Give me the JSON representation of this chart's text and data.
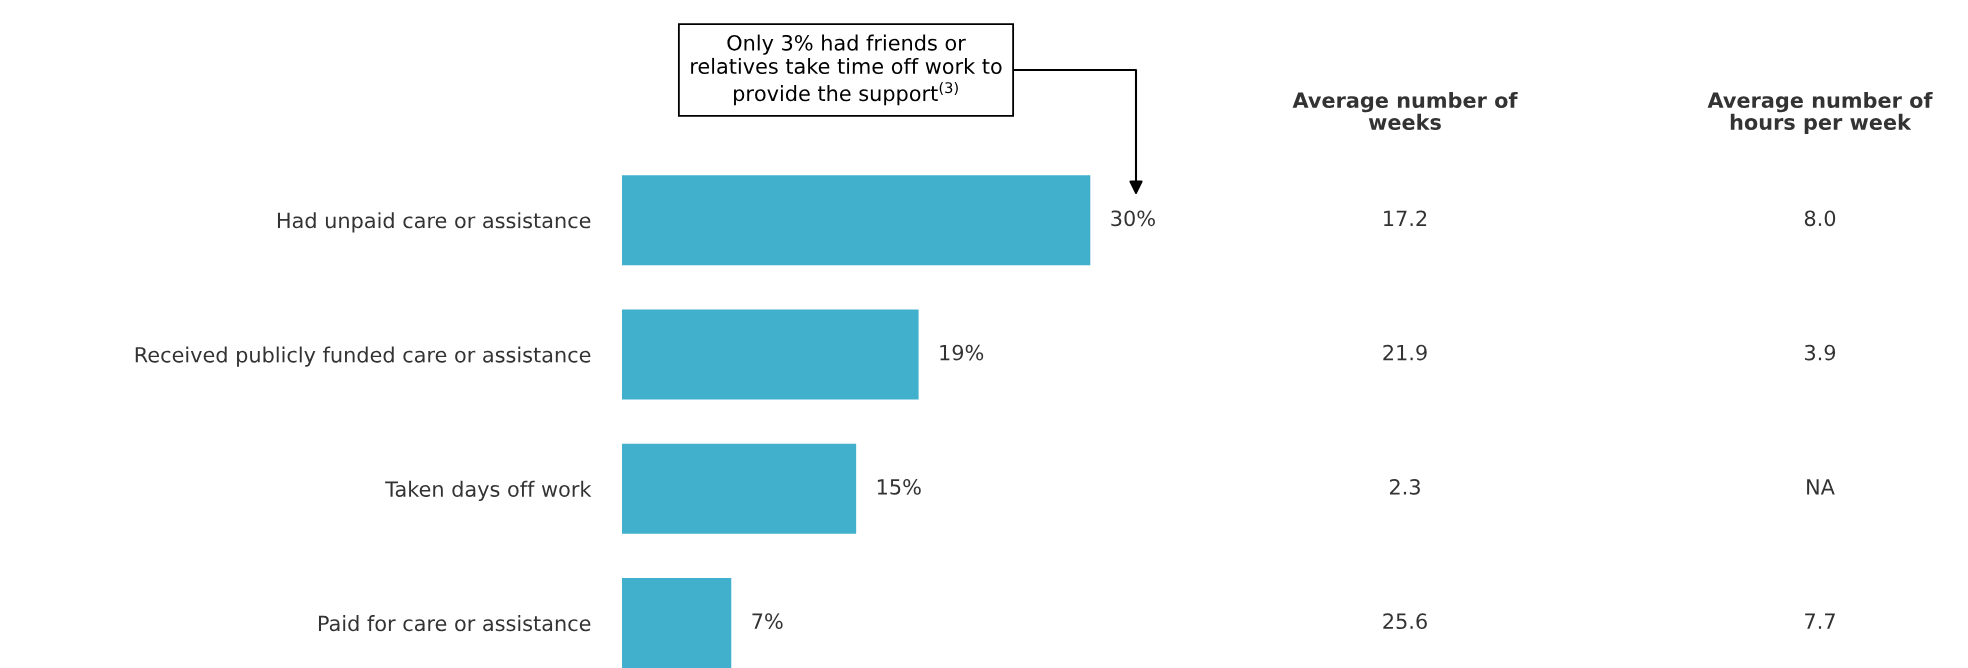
{
  "chart_data": [
    {
      "type": "bar",
      "orientation": "horizontal",
      "categories": [
        "Had unpaid care or assistance",
        "Received publicly funded care or assistance",
        "Taken days off work",
        "Paid for care or assistance"
      ],
      "values": [
        30,
        19,
        15,
        7
      ],
      "color": "#40b0cc",
      "data_labels": true,
      "value_labels": [
        "30%",
        "19%",
        "15%",
        "7%"
      ],
      "tick_labels": "y",
      "grid": false,
      "annotations": [
        "Only 3% had friends or relatives take time off work to provide the support$^{(3)}$"
      ]
    },
    {
      "type": "other",
      "categories": [
        "Average number of weeks",
        "Average number of hours per week"
      ],
      "cell_labels": [
        [
          "17.2",
          "8.0"
        ],
        [
          "21.9",
          "3.9"
        ],
        [
          "2.3",
          "NA"
        ],
        [
          "25.6",
          "7.7"
        ]
      ]
    }
  ]
}
